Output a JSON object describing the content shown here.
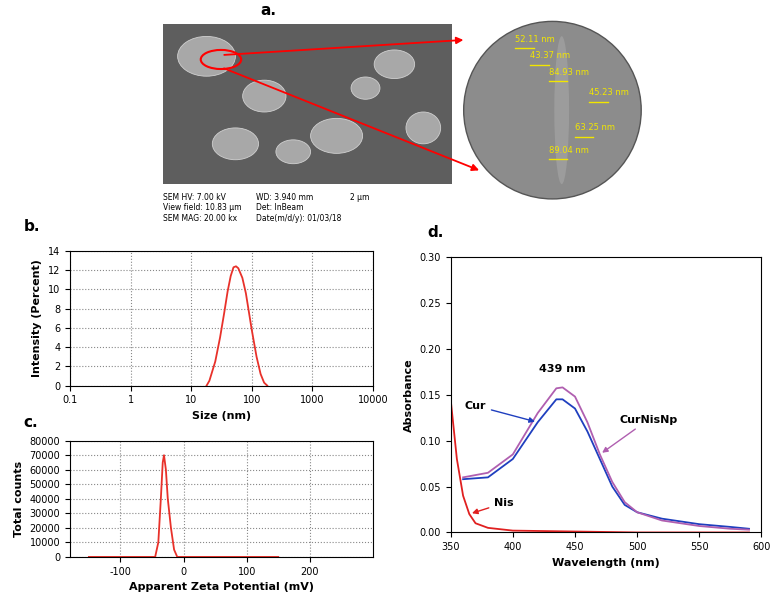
{
  "image": {
    "panel": "a.",
    "metadata": [
      [
        "SEM HV: 7.00 kV",
        "WD: 3.940 mm"
      ],
      [
        "View field: 10.83 µm",
        "Det: InBeam"
      ],
      [
        "SEM MAG: 20.00 kx",
        "Date(m/d/y): 01/03/18"
      ]
    ],
    "scale_bar": "2 µm",
    "zoom_measurements": [
      "52.11 nm",
      "43.37 nm",
      "84.93 nm",
      "45.23 nm",
      "63.25 nm",
      "89.04 nm"
    ]
  },
  "chart_data": [
    {
      "panel": "b.",
      "type": "line",
      "log": "x",
      "grid": true,
      "x_label": "Size (nm)",
      "y_label": "Intensity (Percent)",
      "xlim": [
        0.1,
        10000
      ],
      "xticks": [
        0.1,
        1,
        10,
        100,
        1000,
        10000
      ],
      "ylim": [
        0,
        14
      ],
      "yticks": [
        0,
        2,
        4,
        6,
        8,
        10,
        12,
        14
      ],
      "series": [
        {
          "name": null,
          "color": "#e8312a",
          "x": [
            18,
            20,
            25,
            30,
            35,
            40,
            45,
            50,
            55,
            60,
            70,
            80,
            90,
            100,
            120,
            140,
            160,
            180
          ],
          "values": [
            0,
            0.5,
            2.5,
            5,
            7.5,
            9.8,
            11.4,
            12.3,
            12.4,
            12.2,
            11.2,
            9.6,
            7.6,
            5.8,
            3,
            1.2,
            0.3,
            0
          ]
        }
      ]
    },
    {
      "panel": "c.",
      "type": "line",
      "grid": true,
      "x_label": "Apparent Zeta Potential (mV)",
      "y_label": "Total counts",
      "xlim": [
        -180,
        300
      ],
      "xticks": [
        -100,
        0,
        100,
        200
      ],
      "ylim": [
        0,
        80000
      ],
      "yticks": [
        0,
        10000,
        20000,
        30000,
        40000,
        50000,
        60000,
        70000,
        80000
      ],
      "series": [
        {
          "name": null,
          "color": "#e8312a",
          "x": [
            -150,
            -45,
            -40,
            -36,
            -33,
            -31,
            -28,
            -25,
            -20,
            -15,
            -10,
            150
          ],
          "values": [
            0,
            0,
            10000,
            40000,
            65000,
            70000,
            60000,
            40000,
            20000,
            5000,
            0,
            0
          ]
        }
      ]
    },
    {
      "panel": "d.",
      "type": "line",
      "grid": false,
      "x_label": "Wavelength (nm)",
      "y_label": "Absorbance",
      "annotation": "439 nm",
      "xlim": [
        350,
        600
      ],
      "xticks": [
        350,
        400,
        450,
        500,
        550,
        600
      ],
      "ylim": [
        0,
        0.3
      ],
      "yticks": [
        {
          "value": 0,
          "label": "0.00"
        },
        {
          "value": 0.05,
          "label": "0.05"
        },
        {
          "value": 0.1,
          "label": "0.10"
        },
        {
          "value": 0.15,
          "label": "0.15"
        },
        {
          "value": 0.2,
          "label": "0.20"
        },
        {
          "value": 0.25,
          "label": "0.25"
        },
        {
          "value": 0.3,
          "label": "0.30"
        }
      ],
      "series": [
        {
          "name": "Cur",
          "color": "#1f3fbf",
          "x": [
            360,
            380,
            400,
            420,
            435,
            440,
            450,
            460,
            470,
            480,
            490,
            500,
            520,
            550,
            575,
            590
          ],
          "values": [
            0.058,
            0.06,
            0.08,
            0.12,
            0.145,
            0.145,
            0.135,
            0.11,
            0.08,
            0.05,
            0.03,
            0.022,
            0.015,
            0.009,
            0.006,
            0.004
          ]
        },
        {
          "name": "CurNisNp",
          "color": "#b05fb0",
          "x": [
            360,
            380,
            400,
            420,
            435,
            440,
            450,
            460,
            470,
            480,
            490,
            500,
            520,
            550,
            575,
            590
          ],
          "values": [
            0.06,
            0.065,
            0.085,
            0.13,
            0.157,
            0.158,
            0.148,
            0.12,
            0.085,
            0.055,
            0.033,
            0.022,
            0.013,
            0.007,
            0.004,
            0.003
          ]
        },
        {
          "name": "Nis",
          "color": "#e02020",
          "x": [
            350,
            355,
            360,
            365,
            370,
            380,
            400,
            450,
            500,
            550,
            590
          ],
          "values": [
            0.145,
            0.08,
            0.04,
            0.02,
            0.01,
            0.005,
            0.002,
            0.001,
            0,
            0,
            0
          ]
        }
      ]
    }
  ]
}
